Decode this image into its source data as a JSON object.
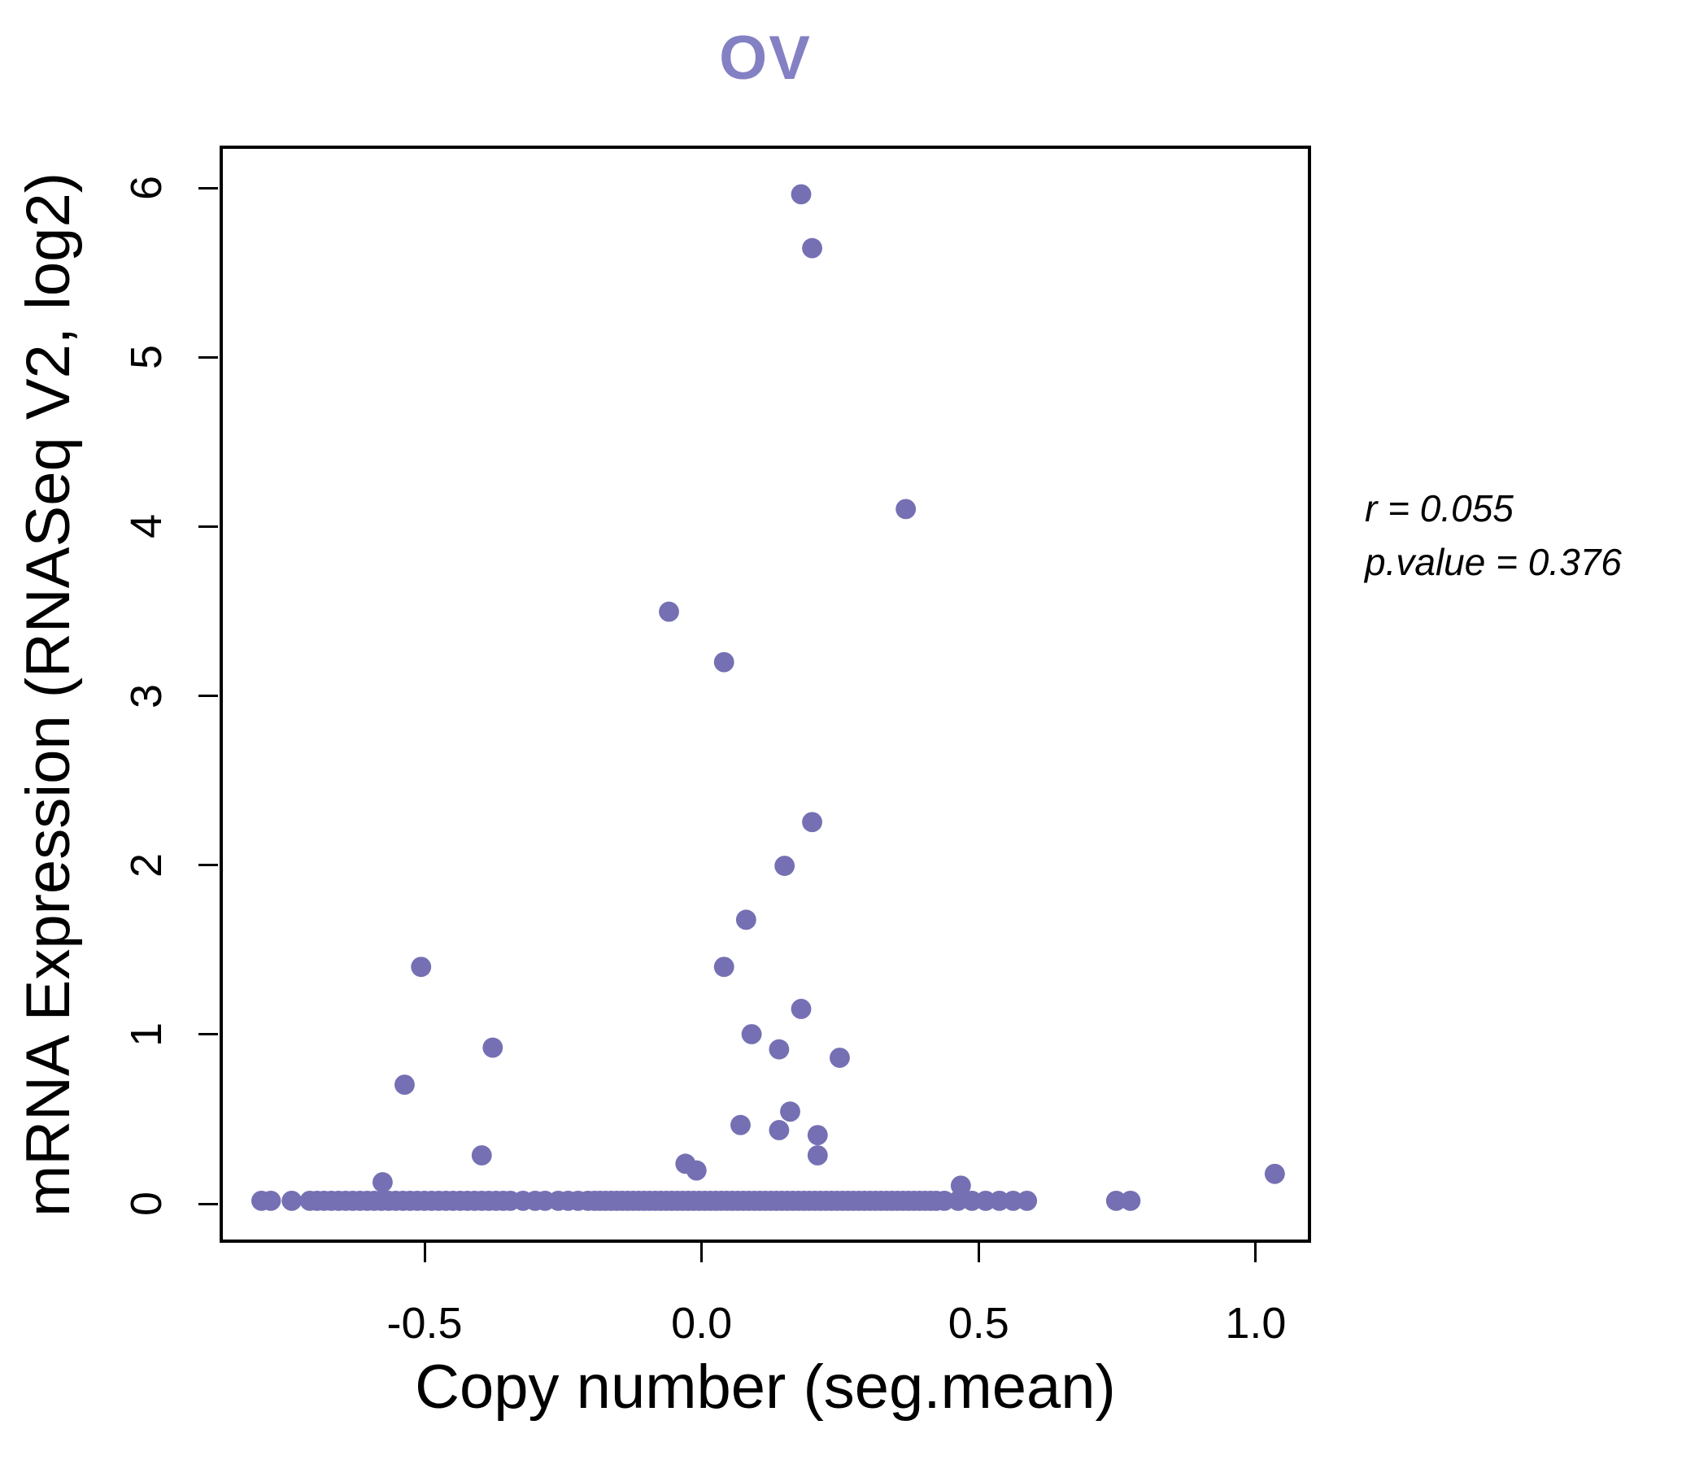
{
  "annotation": {
    "line1": "r = 0.055",
    "line2": "p.value = 0.376"
  },
  "colors": {
    "point": "#7570b3",
    "title": "#8480c4",
    "axis": "#000000"
  },
  "chart_data": {
    "type": "scatter",
    "title": "OV",
    "xlabel": "Copy number (seg.mean)",
    "ylabel": "mRNA Expression (RNASeq V2, log2)",
    "xlim": [
      -0.87,
      1.1
    ],
    "ylim": [
      -0.23,
      6.25
    ],
    "x_ticks": [
      -0.5,
      0.0,
      0.5,
      1.0
    ],
    "x_tick_labels": [
      "-0.5",
      "0.0",
      "0.5",
      "1.0"
    ],
    "y_ticks": [
      0,
      1,
      2,
      3,
      4,
      5,
      6
    ],
    "y_tick_labels": [
      "0",
      "1",
      "2",
      "3",
      "4",
      "5",
      "6"
    ],
    "grid": false,
    "legend": "none",
    "marker_radius_px": 12.5,
    "stats": {
      "r": 0.055,
      "p_value": 0.376
    },
    "points": [
      [
        0.18,
        5.98
      ],
      [
        0.2,
        5.66
      ],
      [
        0.37,
        4.11
      ],
      [
        -0.06,
        3.5
      ],
      [
        0.04,
        3.2
      ],
      [
        0.2,
        2.25
      ],
      [
        0.15,
        1.99
      ],
      [
        0.08,
        1.67
      ],
      [
        0.04,
        1.39
      ],
      [
        -0.51,
        1.39
      ],
      [
        0.18,
        1.14
      ],
      [
        -0.38,
        0.91
      ],
      [
        0.09,
        0.99
      ],
      [
        0.14,
        0.9
      ],
      [
        0.25,
        0.85
      ],
      [
        -0.54,
        0.69
      ],
      [
        0.16,
        0.53
      ],
      [
        0.07,
        0.45
      ],
      [
        0.14,
        0.42
      ],
      [
        0.21,
        0.39
      ],
      [
        0.21,
        0.27
      ],
      [
        -0.4,
        0.27
      ],
      [
        -0.03,
        0.22
      ],
      [
        -0.01,
        0.18
      ],
      [
        1.04,
        0.16
      ],
      [
        -0.58,
        0.11
      ],
      [
        0.47,
        0.09
      ],
      [
        -0.8,
        0
      ],
      [
        -0.783,
        0
      ],
      [
        -0.745,
        0
      ],
      [
        -0.712,
        0
      ],
      [
        -0.699,
        0
      ],
      [
        -0.686,
        0
      ],
      [
        -0.673,
        0
      ],
      [
        -0.66,
        0
      ],
      [
        -0.647,
        0
      ],
      [
        -0.634,
        0
      ],
      [
        -0.621,
        0
      ],
      [
        -0.608,
        0
      ],
      [
        -0.595,
        0
      ],
      [
        -0.582,
        0
      ],
      [
        -0.569,
        0
      ],
      [
        -0.556,
        0
      ],
      [
        -0.543,
        0
      ],
      [
        -0.53,
        0
      ],
      [
        -0.517,
        0
      ],
      [
        -0.504,
        0
      ],
      [
        -0.491,
        0
      ],
      [
        -0.478,
        0
      ],
      [
        -0.465,
        0
      ],
      [
        -0.452,
        0
      ],
      [
        -0.439,
        0
      ],
      [
        -0.426,
        0
      ],
      [
        -0.413,
        0
      ],
      [
        -0.4,
        0
      ],
      [
        -0.387,
        0
      ],
      [
        -0.374,
        0
      ],
      [
        -0.361,
        0
      ],
      [
        -0.348,
        0
      ],
      [
        -0.325,
        0
      ],
      [
        -0.303,
        0
      ],
      [
        -0.285,
        0
      ],
      [
        -0.261,
        0
      ],
      [
        -0.243,
        0
      ],
      [
        -0.225,
        0
      ],
      [
        -0.207,
        0
      ],
      [
        -0.195,
        0
      ],
      [
        -0.185,
        0
      ],
      [
        -0.175,
        0
      ],
      [
        -0.165,
        0
      ],
      [
        -0.155,
        0
      ],
      [
        -0.145,
        0
      ],
      [
        -0.135,
        0
      ],
      [
        -0.125,
        0
      ],
      [
        -0.115,
        0
      ],
      [
        -0.105,
        0
      ],
      [
        -0.095,
        0
      ],
      [
        -0.085,
        0
      ],
      [
        -0.075,
        0
      ],
      [
        -0.065,
        0
      ],
      [
        -0.055,
        0
      ],
      [
        -0.045,
        0
      ],
      [
        -0.035,
        0
      ],
      [
        -0.025,
        0
      ],
      [
        -0.015,
        0
      ],
      [
        -0.005,
        0
      ],
      [
        0.005,
        0
      ],
      [
        0.015,
        0
      ],
      [
        0.025,
        0
      ],
      [
        0.035,
        0
      ],
      [
        0.045,
        0
      ],
      [
        0.055,
        0
      ],
      [
        0.065,
        0
      ],
      [
        0.075,
        0
      ],
      [
        0.085,
        0
      ],
      [
        0.095,
        0
      ],
      [
        0.105,
        0
      ],
      [
        0.115,
        0
      ],
      [
        0.125,
        0
      ],
      [
        0.135,
        0
      ],
      [
        0.145,
        0
      ],
      [
        0.155,
        0
      ],
      [
        0.165,
        0
      ],
      [
        0.175,
        0
      ],
      [
        0.185,
        0
      ],
      [
        0.195,
        0
      ],
      [
        0.205,
        0
      ],
      [
        0.215,
        0
      ],
      [
        0.225,
        0
      ],
      [
        0.235,
        0
      ],
      [
        0.245,
        0
      ],
      [
        0.255,
        0
      ],
      [
        0.265,
        0
      ],
      [
        0.275,
        0
      ],
      [
        0.285,
        0
      ],
      [
        0.295,
        0
      ],
      [
        0.305,
        0
      ],
      [
        0.315,
        0
      ],
      [
        0.325,
        0
      ],
      [
        0.335,
        0
      ],
      [
        0.345,
        0
      ],
      [
        0.355,
        0
      ],
      [
        0.365,
        0
      ],
      [
        0.375,
        0
      ],
      [
        0.385,
        0
      ],
      [
        0.395,
        0
      ],
      [
        0.405,
        0
      ],
      [
        0.415,
        0
      ],
      [
        0.425,
        0
      ],
      [
        0.44,
        0
      ],
      [
        0.465,
        0
      ],
      [
        0.49,
        0
      ],
      [
        0.515,
        0
      ],
      [
        0.54,
        0
      ],
      [
        0.565,
        0
      ],
      [
        0.59,
        0
      ],
      [
        0.752,
        0
      ],
      [
        0.778,
        0
      ]
    ]
  }
}
